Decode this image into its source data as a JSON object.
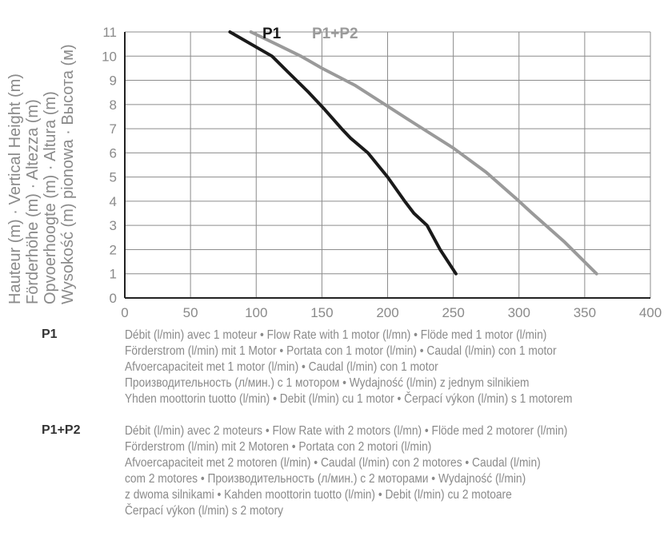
{
  "chart_data": {
    "type": "line",
    "xlim": [
      0,
      400
    ],
    "ylim": [
      0,
      11
    ],
    "x_ticks": [
      "0",
      "50",
      "100",
      "150",
      "200",
      "250",
      "300",
      "350",
      "400"
    ],
    "y_ticks": [
      "0",
      "1",
      "2",
      "3",
      "4",
      "5",
      "6",
      "7",
      "8",
      "9",
      "10",
      "11"
    ],
    "grid": true,
    "ylabel_lines": [
      "Hauteur (m) · Vertical Height (m)",
      "Förderhöhe (m) · Altezza (m)",
      "Opvoerhoogte (m) · Altura (m)",
      "Wysokość (m) pionowa · Высота (м)"
    ],
    "series": [
      {
        "name": "P1",
        "color": "#1a1a1a",
        "x": [
          80,
          112,
          125,
          140,
          152,
          165,
          172,
          185,
          200,
          213,
          220,
          230,
          240,
          252
        ],
        "y": [
          11,
          10,
          9.3,
          8.5,
          7.8,
          7,
          6.6,
          6,
          5,
          4,
          3.5,
          3,
          2,
          1
        ]
      },
      {
        "name": "P1+P2",
        "color": "#9a9a9a",
        "x": [
          96,
          115,
          134,
          150,
          175,
          198,
          218,
          250,
          275,
          298,
          310,
          335,
          359
        ],
        "y": [
          11,
          10.5,
          10,
          9.5,
          8.8,
          8,
          7.3,
          6.2,
          5.2,
          4.1,
          3.5,
          2.3,
          1
        ]
      }
    ],
    "legend_position": "top"
  },
  "legend": [
    {
      "key": "P1",
      "lines": [
        "Débit (l/min) avec 1 moteur • Flow Rate with 1 motor (l/mn) •  Flöde med 1 motor (l/min)",
        "Förderstrom (l/min) mit 1 Motor • Portata con 1 motor (l/min) • Caudal (l/min) con 1 motor",
        "Afvoercapaciteit met 1 motor (l/min) • Caudal (l/min) con 1 motor",
        "Производительность (л/мин.) с 1 мотором • Wydajność (l/min) z jednym silnikiem",
        "Yhden moottorin tuotto (l/min) • Debit (l/min) cu 1 motor •  Čerpací výkon (l/min) s 1 motorem"
      ]
    },
    {
      "key": "P1+P2",
      "lines": [
        "Débit (l/min) avec 2 moteurs • Flow Rate with 2 motors (l/mn) • Flöde med 2 motorer (l/min)",
        "Förderstrom (l/min) mit 2 Motoren • Portata con 2 motori (l/min)",
        "Afvoercapaciteit met 2 motoren (l/min) • Caudal (l/min) con 2 motores • Caudal (l/min)",
        "com 2 motores • Производительность (л/мин.) с 2 моторами • Wydajność (l/min)",
        "z dwoma silnikami • Kahden moottorin tuotto (l/min) • Debit (l/min) cu 2 motoare",
        "Čerpací výkon (l/min) s 2 motory"
      ]
    }
  ]
}
